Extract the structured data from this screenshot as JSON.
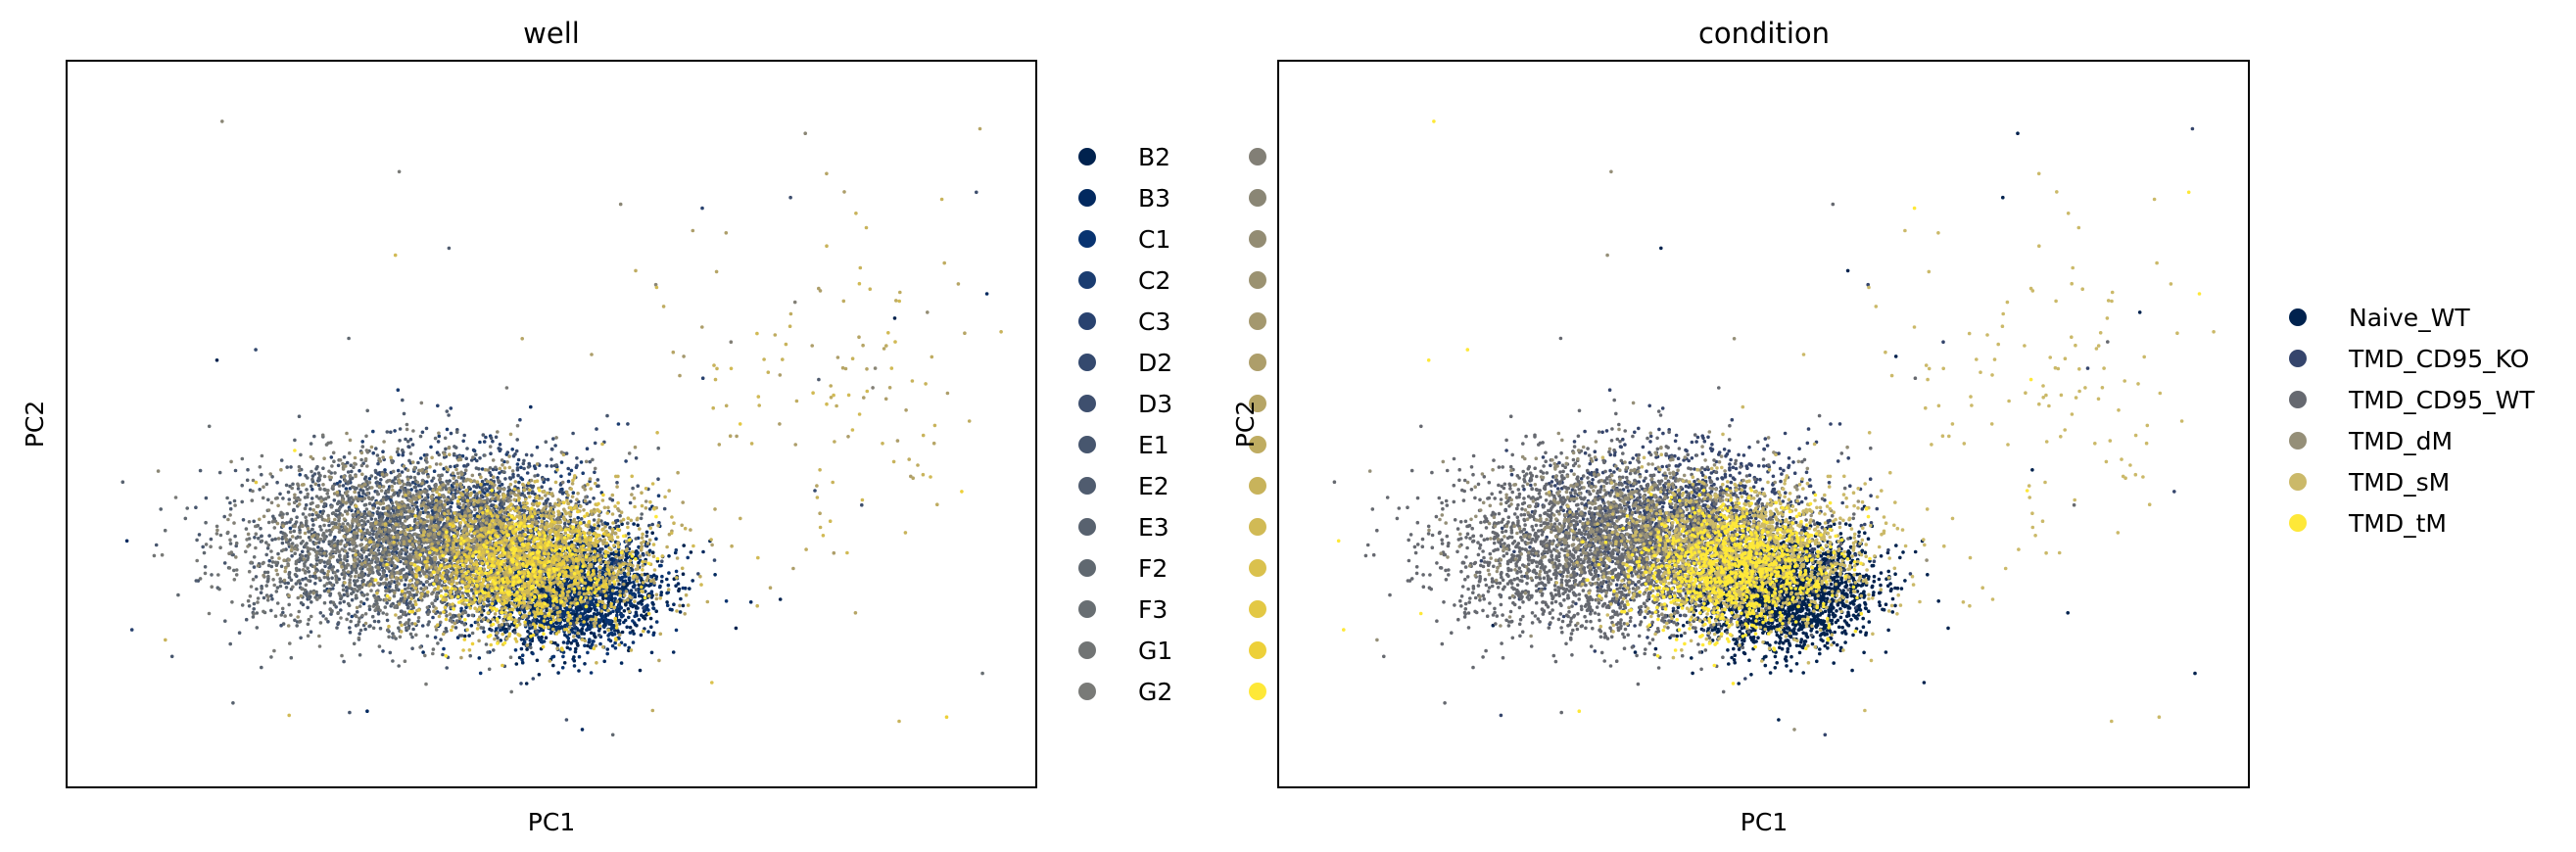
{
  "chart_data": [
    {
      "type": "scatter",
      "title": "well",
      "xlabel": "PC1",
      "ylabel": "PC2",
      "xticks": [],
      "yticks": [],
      "legend_position": "right, two columns",
      "legend": [
        {
          "label": "B2",
          "color": "#00224e"
        },
        {
          "label": "B3",
          "color": "#02295f"
        },
        {
          "label": "C1",
          "color": "#083370"
        },
        {
          "label": "C2",
          "color": "#1a3c70"
        },
        {
          "label": "C3",
          "color": "#29426f"
        },
        {
          "label": "D2",
          "color": "#34496e"
        },
        {
          "label": "D3",
          "color": "#3e4f6e"
        },
        {
          "label": "E1",
          "color": "#47566e"
        },
        {
          "label": "E2",
          "color": "#505c6f"
        },
        {
          "label": "E3",
          "color": "#58626f"
        },
        {
          "label": "F2",
          "color": "#606870"
        },
        {
          "label": "F3",
          "color": "#686e72"
        },
        {
          "label": "G1",
          "color": "#717474"
        },
        {
          "label": "G2",
          "color": "#797a77"
        },
        {
          "label": "",
          "color": "#827f76"
        },
        {
          "label": "",
          "color": "#8a8675"
        },
        {
          "label": "",
          "color": "#938c73"
        },
        {
          "label": "",
          "color": "#9b9271"
        },
        {
          "label": "",
          "color": "#a4986e"
        },
        {
          "label": "",
          "color": "#ad9e6a"
        },
        {
          "label": "",
          "color": "#b6a566"
        },
        {
          "label": "",
          "color": "#bfac61"
        },
        {
          "label": "",
          "color": "#c8b35b"
        },
        {
          "label": "",
          "color": "#d1ba55"
        },
        {
          "label": "",
          "color": "#dac14d"
        },
        {
          "label": "",
          "color": "#e3c844"
        },
        {
          "label": "",
          "color": "#edd039"
        },
        {
          "label": "",
          "color": "#fee838"
        }
      ]
    },
    {
      "type": "scatter",
      "title": "condition",
      "xlabel": "PC1",
      "ylabel": "PC2",
      "xticks": [],
      "yticks": [],
      "legend_position": "right",
      "legend": [
        {
          "label": "Naive_WT",
          "color": "#00224e"
        },
        {
          "label": "TMD_CD95_KO",
          "color": "#35456c"
        },
        {
          "label": "TMD_CD95_WT",
          "color": "#666970"
        },
        {
          "label": "TMD_dM",
          "color": "#958f78"
        },
        {
          "label": "TMD_sM",
          "color": "#cbb969"
        },
        {
          "label": "TMD_tM",
          "color": "#fee838"
        }
      ]
    }
  ]
}
